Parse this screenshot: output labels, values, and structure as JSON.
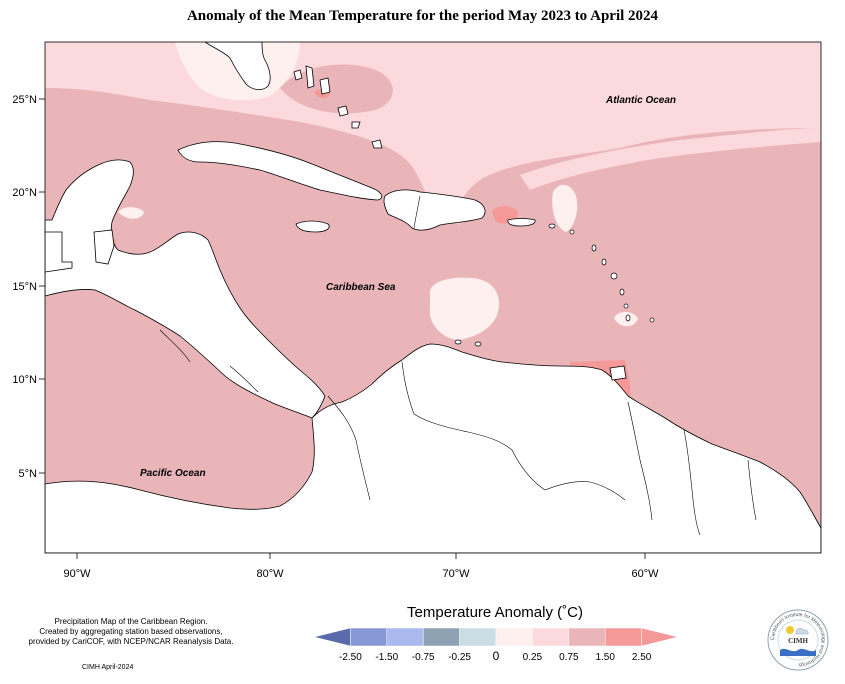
{
  "title": "Anomaly of the Mean Temperature for the period May 2023 to April 2024",
  "map": {
    "x_ticks": [
      "90°W",
      "80°W",
      "70°W",
      "60°W"
    ],
    "y_ticks": [
      "25°N",
      "20°N",
      "15°N",
      "10°N",
      "5°N"
    ],
    "labels": {
      "atlantic": "Atlantic Ocean",
      "caribbean": "Caribbean Sea",
      "pacific": "Pacific Ocean"
    }
  },
  "legend": {
    "title": "Temperature Anomaly (˚C)",
    "ticks": [
      "-2.50",
      "-1.50",
      "-0.75",
      "-0.25",
      "0",
      "0.25",
      "0.75",
      "1.50",
      "2.50"
    ],
    "colors": [
      "#5b6aaa",
      "#8796d4",
      "#a9b8ef",
      "#8fa2b4",
      "#c9dde3",
      "#fff0f0",
      "#fbd9dc",
      "#e9b5b8",
      "#f59898",
      "#f59898"
    ]
  },
  "notes": {
    "line1": "Precipitation Map of the Caribbean Region.",
    "line2": "Created by aggregating station based observations,",
    "line3": "provided by CariCOF, with NCEP/NCAR Reanalysis Data.",
    "credit": "CIMH April-2024"
  },
  "logo": {
    "name": "CIMH",
    "ring_text": "Caribbean Institute for Meteorology and Hydrology"
  }
}
